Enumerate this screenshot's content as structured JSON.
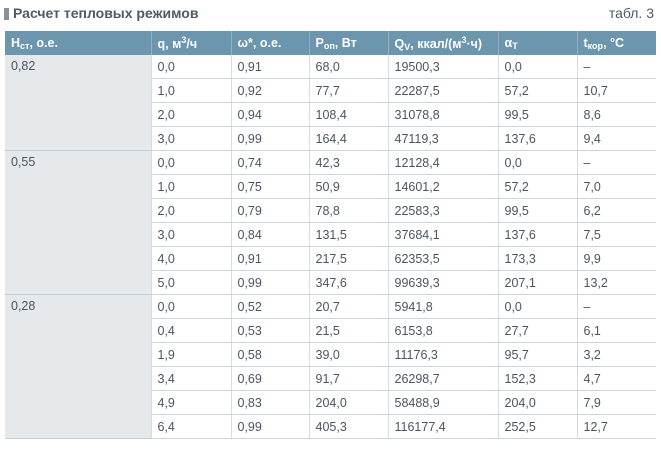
{
  "header": {
    "title": "Расчет тепловых режимов",
    "table_number": "табл. 3"
  },
  "columns": [
    {
      "main": "H",
      "sub": "ст",
      "rest": ", о.е."
    },
    {
      "main": "q, м",
      "sup": "3",
      "rest": "/ч"
    },
    {
      "main": "ω*, о.е."
    },
    {
      "main": "P",
      "sub": "оп",
      "rest": ", Вт"
    },
    {
      "main": "Q",
      "sub": "V",
      "rest": ", ккал/(м",
      "sup": "3",
      "rest2": "·ч)"
    },
    {
      "main": "α",
      "sub": "T"
    },
    {
      "main": "t",
      "sub": "кор",
      "rest": ", °C"
    }
  ],
  "groups": [
    {
      "h": "0,82",
      "rows": [
        [
          "0,0",
          "0,91",
          "68,0",
          "19500,3",
          "0,0",
          "–"
        ],
        [
          "1,0",
          "0,92",
          "77,7",
          "22287,5",
          "57,2",
          "10,7"
        ],
        [
          "2,0",
          "0,94",
          "108,4",
          "31078,8",
          "99,5",
          "8,6"
        ],
        [
          "3,0",
          "0,99",
          "164,4",
          "47119,3",
          "137,6",
          "9,4"
        ]
      ]
    },
    {
      "h": "0,55",
      "rows": [
        [
          "0,0",
          "0,74",
          "42,3",
          "12128,4",
          "0,0",
          "–"
        ],
        [
          "1,0",
          "0,75",
          "50,9",
          "14601,2",
          "57,2",
          "7,0"
        ],
        [
          "2,0",
          "0,79",
          "78,8",
          "22583,3",
          "99,5",
          "6,2"
        ],
        [
          "3,0",
          "0,84",
          "131,5",
          "37684,1",
          "137,6",
          "7,5"
        ],
        [
          "4,0",
          "0,91",
          "217,5",
          "62353,5",
          "173,3",
          "9,9"
        ],
        [
          "5,0",
          "0,99",
          "347,6",
          "99639,3",
          "207,1",
          "13,2"
        ]
      ]
    },
    {
      "h": "0,28",
      "rows": [
        [
          "0,0",
          "0,52",
          "20,7",
          "5941,8",
          "0,0",
          "–"
        ],
        [
          "0,4",
          "0,53",
          "21,5",
          "6153,8",
          "27,7",
          "6,1"
        ],
        [
          "1,9",
          "0,58",
          "39,0",
          "11176,3",
          "95,7",
          "3,2"
        ],
        [
          "3,4",
          "0,69",
          "91,7",
          "26298,7",
          "152,3",
          "4,7"
        ],
        [
          "4,9",
          "0,83",
          "204,0",
          "58488,9",
          "204,0",
          "7,9"
        ],
        [
          "6,4",
          "0,99",
          "405,3",
          "116177,4",
          "252,5",
          "12,7"
        ]
      ]
    }
  ],
  "colors": {
    "header_bg": "#6b96ae",
    "group_bg": "#e6e9ec",
    "text": "#4a5560"
  }
}
